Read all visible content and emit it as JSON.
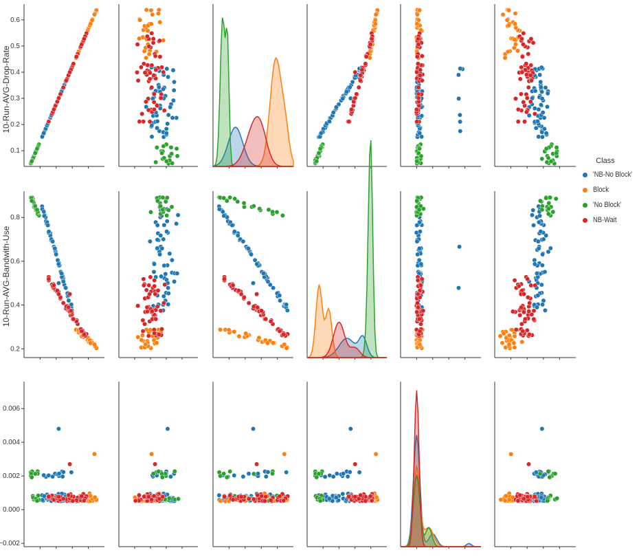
{
  "chart_data": {
    "type": "scatter",
    "variables": [
      "10-Run-AVG-Drop-Rate",
      "10-Run-AVG-Bandwith-Use",
      ""
    ],
    "ylabels": [
      "10-Run-AVG-Drop-Rate",
      "10-Run-AVG-Bandwith-Use",
      ""
    ],
    "yticks": [
      [
        "0.1",
        "0.2",
        "0.3",
        "0.4",
        "0.5",
        "0.6"
      ],
      [
        "0.2",
        "0.4",
        "0.6",
        "0.8"
      ],
      [
        "−0.002",
        "0.000",
        "0.002",
        "0.004",
        "0.006"
      ]
    ],
    "ylims": [
      [
        0.04,
        0.66
      ],
      [
        0.16,
        0.92
      ],
      [
        -0.0022,
        0.0076
      ]
    ],
    "legend": {
      "title": "Class",
      "placement": "right",
      "entries": [
        {
          "label": "'NB-No Block'",
          "color": "#1f77b4"
        },
        {
          "label": "Block",
          "color": "#ff7f0e"
        },
        {
          "label": "'No Block'",
          "color": "#2ca02c"
        },
        {
          "label": "NB-Wait",
          "color": "#d62728"
        }
      ]
    },
    "notable_points": {
      "outlier_row3": {
        "class": "'NB-No Block'",
        "value": 0.0048
      },
      "block_high_row3": {
        "class": "Block",
        "value": 0.0033
      },
      "nbwait_high_row3": {
        "class": "NB-Wait",
        "value": 0.0027
      }
    },
    "series": [
      {
        "name": "'NB-No Block'",
        "color": "#1f77b4",
        "drop_rate_range": [
          0.15,
          0.42
        ],
        "bandwidth_range": [
          0.38,
          0.85
        ],
        "row3_range": [
          0.0005,
          0.0048
        ]
      },
      {
        "name": "Block",
        "color": "#ff7f0e",
        "drop_rate_range": [
          0.45,
          0.64
        ],
        "bandwidth_range": [
          0.2,
          0.3
        ],
        "row3_range": [
          0.0005,
          0.0033
        ]
      },
      {
        "name": "'No Block'",
        "color": "#2ca02c",
        "drop_rate_range": [
          0.05,
          0.13
        ],
        "bandwidth_range": [
          0.8,
          0.9
        ],
        "row3_range": [
          0.0005,
          0.0022
        ]
      },
      {
        "name": "NB-Wait",
        "color": "#d62728",
        "drop_rate_range": [
          0.18,
          0.55
        ],
        "bandwidth_range": [
          0.25,
          0.55
        ],
        "row3_range": [
          0.0004,
          0.0027
        ]
      }
    ]
  }
}
